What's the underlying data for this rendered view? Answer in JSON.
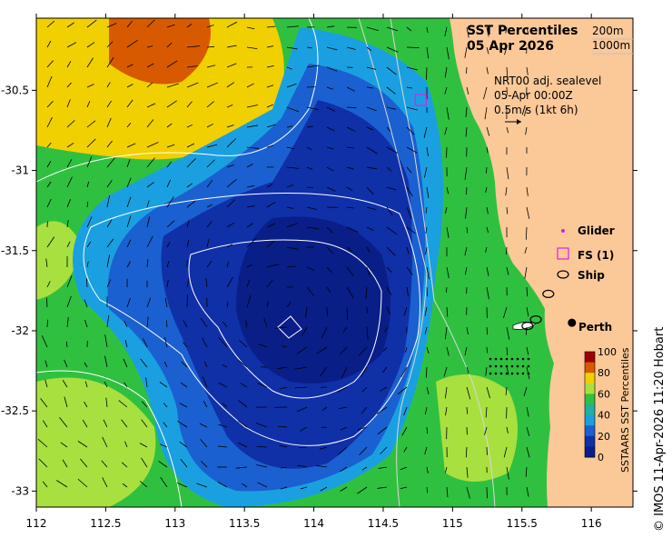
{
  "title": "SST Percentiles",
  "date": "05 Apr 2026",
  "contour_labels": [
    "200m",
    "1000m"
  ],
  "current_info": {
    "source": "NRT00 adj. sealevel",
    "time": "05-Apr 00:00Z",
    "scale": "0.5m/s (1kt 6h)"
  },
  "legend": {
    "glider": "Glider",
    "fs": "FS (1)",
    "ship": "Ship"
  },
  "place_label": "Perth",
  "colorbar": {
    "title": "SSTAARS SST Percentiles",
    "ticks": [
      "100",
      "80",
      "60",
      "40",
      "20",
      "0"
    ],
    "colors": [
      "#a00000",
      "#d85a00",
      "#f0d000",
      "#a8e040",
      "#30c040",
      "#20b0a0",
      "#1aa0e0",
      "#1a60d0",
      "#1030a8",
      "#0a1e88"
    ]
  },
  "credit": "© IMOS 11-Apr-2026 11:20 Hobart",
  "axes": {
    "x_ticks": [
      "112",
      "112.5",
      "113",
      "113.5",
      "114",
      "114.5",
      "115",
      "115.5",
      "116"
    ],
    "y_ticks": [
      "-30.5",
      "-31",
      "-31.5",
      "-32",
      "-32.5",
      "-33"
    ],
    "lon_range": [
      112,
      116.3
    ],
    "lat_range": [
      -33.1,
      -30.05
    ]
  },
  "map_data": {
    "perth": [
      115.86,
      -31.95
    ],
    "ships": [
      [
        115.69,
        -31.77
      ],
      [
        115.6,
        -31.93
      ],
      [
        115.54,
        -31.97
      ]
    ],
    "fs_station": [
      114.77,
      -30.56
    ],
    "colors": {
      "land": "#fbc898",
      "blue_deep": "#0a1e88",
      "blue_mid": "#1030a8",
      "blue_light": "#1a60d0",
      "cyan": "#1aa0e0",
      "green": "#30c040",
      "lime": "#a8e040",
      "yellow": "#f0d000",
      "orange": "#d85a00",
      "glider": "#e020e0"
    }
  }
}
